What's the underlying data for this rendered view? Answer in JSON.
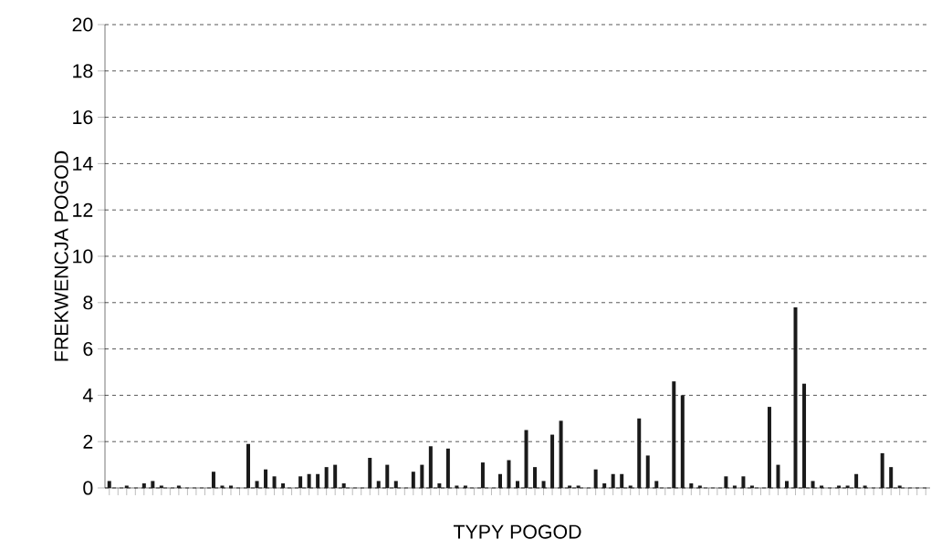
{
  "chart_data": {
    "type": "bar",
    "xlabel": "TYPY POGOD",
    "ylabel": "FREKWENCJA POGOD",
    "categories": [
      null,
      null,
      null,
      null,
      null,
      null,
      null,
      null,
      null,
      null,
      null,
      null,
      null,
      null,
      null,
      null,
      null,
      null,
      null,
      null,
      null,
      null,
      null,
      null,
      null,
      null,
      null,
      null,
      null,
      null,
      null,
      null,
      null,
      null,
      null,
      null,
      null,
      null,
      null,
      null,
      null,
      null,
      null,
      null,
      null,
      null,
      null,
      null,
      null,
      null,
      null,
      null,
      null,
      null,
      null,
      null,
      null,
      null,
      null,
      null,
      null,
      null,
      null,
      null,
      null,
      null,
      null,
      null,
      null,
      null,
      null,
      null,
      null,
      null,
      null,
      null,
      null,
      null,
      null,
      null,
      null,
      null,
      null,
      null,
      null,
      null,
      null,
      null,
      null,
      null,
      null,
      null,
      null,
      null,
      null
    ],
    "values": [
      0.3,
      0,
      0.1,
      0,
      0.2,
      0.3,
      0.1,
      0,
      0.1,
      0,
      0,
      0,
      0.7,
      0.1,
      0.1,
      0,
      1.9,
      0.3,
      0.8,
      0.5,
      0.2,
      0,
      0.5,
      0.6,
      0.6,
      0.9,
      1.0,
      0.2,
      0,
      0,
      1.3,
      0.3,
      1.0,
      0.3,
      0,
      0.7,
      1.0,
      1.8,
      0.2,
      1.7,
      0.1,
      0.1,
      0,
      1.1,
      0,
      0.6,
      1.2,
      0.3,
      2.5,
      0.9,
      0.3,
      2.3,
      2.9,
      0.1,
      0.1,
      0,
      0.8,
      0.2,
      0.6,
      0.6,
      0.1,
      3.0,
      1.4,
      0.3,
      0,
      4.6,
      4.0,
      0.2,
      0.1,
      0,
      0,
      0.5,
      0.1,
      0.5,
      0.1,
      0,
      3.5,
      1.0,
      0.3,
      7.8,
      4.5,
      0.3,
      0.1,
      0,
      0.1,
      0.1,
      0.6,
      0.1,
      0,
      1.5,
      0.9,
      0.1,
      0,
      0,
      0
    ],
    "color": "#1a1a1a",
    "ylim": [
      0,
      20
    ],
    "yticks": [
      0,
      2,
      4,
      6,
      8,
      10,
      12,
      14,
      16,
      18,
      20
    ],
    "grid": "y",
    "line_style": "dashed",
    "tick_labels": "y"
  }
}
